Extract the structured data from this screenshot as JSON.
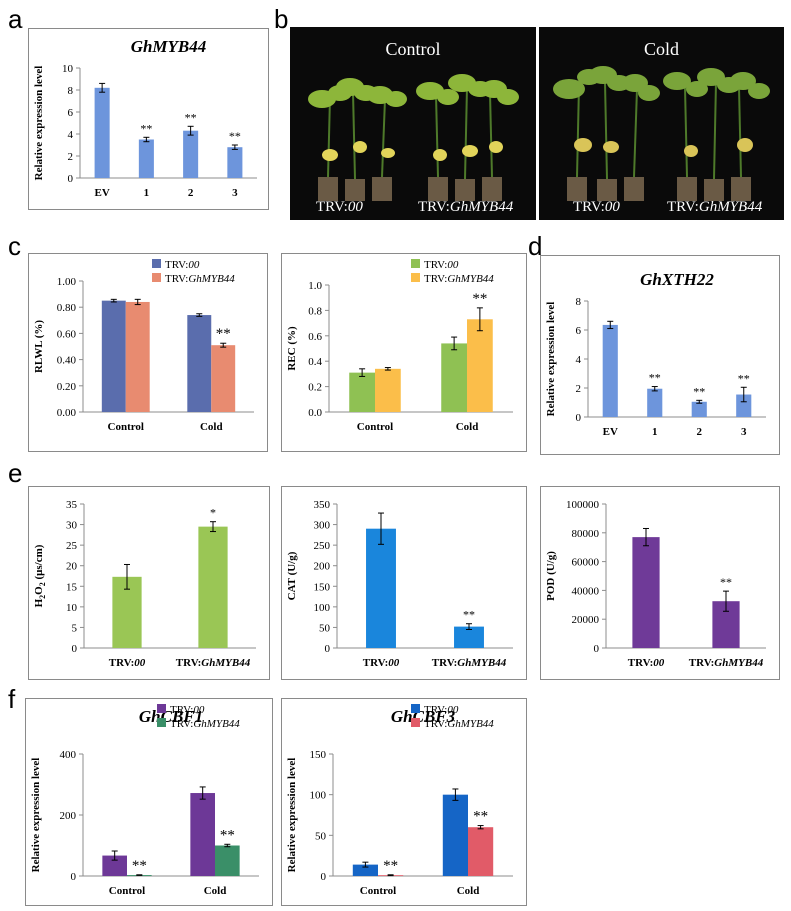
{
  "labels": {
    "a": "a",
    "b": "b",
    "c": "c",
    "d": "d",
    "e": "e",
    "f": "f"
  },
  "photos": [
    {
      "title": "Control",
      "left_caption": "TRV:",
      "left_caption_italic": "00",
      "right_caption": "TRV:",
      "right_caption_italic": "GhMYB44"
    },
    {
      "title": "Cold",
      "left_caption": "TRV:",
      "left_caption_italic": "00",
      "right_caption": "TRV:",
      "right_caption_italic": "GhMYB44"
    }
  ],
  "chart_data": [
    {
      "id": "a",
      "type": "bar",
      "title": "GhMYB44",
      "ylabel": "Relative expression level",
      "xlabel": "",
      "categories": [
        "EV",
        "1",
        "2",
        "3"
      ],
      "series": [
        {
          "values": [
            8.2,
            3.5,
            4.3,
            2.8
          ],
          "errors": [
            0.4,
            0.2,
            0.4,
            0.2
          ],
          "color": "#6d95dc"
        }
      ],
      "annotations": [
        "",
        "**",
        "**",
        "**"
      ],
      "ylim": [
        0,
        10
      ],
      "yticks": [
        0,
        2,
        4,
        6,
        8,
        10
      ],
      "tick_decimals": 0,
      "grid": false
    },
    {
      "id": "c1",
      "type": "bar",
      "title": "",
      "ylabel": "RLWL (%)",
      "xlabel": "",
      "categories": [
        "Control",
        "Cold"
      ],
      "series": [
        {
          "name": "TRV:",
          "name_italic": "00",
          "values": [
            0.85,
            0.74
          ],
          "errors": [
            0.01,
            0.01
          ],
          "color": "#5a6dad"
        },
        {
          "name": "TRV:",
          "name_italic": "GhMYB44",
          "values": [
            0.84,
            0.51
          ],
          "errors": [
            0.02,
            0.015
          ],
          "color": "#e88b70"
        }
      ],
      "annotations": [
        [
          "",
          ""
        ],
        [
          "",
          "**"
        ]
      ],
      "ylim": [
        0,
        1
      ],
      "yticks": [
        0,
        0.2,
        0.4,
        0.6,
        0.8,
        1.0
      ],
      "tick_decimals": 2,
      "grid": false,
      "legend": "top-right"
    },
    {
      "id": "c2",
      "type": "bar",
      "title": "",
      "ylabel": "REC (%)",
      "xlabel": "",
      "categories": [
        "Control",
        "Cold"
      ],
      "series": [
        {
          "name": "TRV:",
          "name_italic": "00",
          "values": [
            0.31,
            0.54
          ],
          "errors": [
            0.03,
            0.05
          ],
          "color": "#8fc153"
        },
        {
          "name": "TRV:",
          "name_italic": "GhMYB44",
          "values": [
            0.34,
            0.73
          ],
          "errors": [
            0.01,
            0.09
          ],
          "color": "#fbbe4a"
        }
      ],
      "annotations": [
        [
          "",
          ""
        ],
        [
          "",
          "**"
        ]
      ],
      "ylim": [
        0,
        1
      ],
      "yticks": [
        0,
        0.2,
        0.4,
        0.6,
        0.8,
        1.0
      ],
      "tick_decimals": 1,
      "grid": false,
      "legend": "top-right"
    },
    {
      "id": "d",
      "type": "bar",
      "title": "GhXTH22",
      "ylabel": "Relative expression level",
      "xlabel": "",
      "categories": [
        "EV",
        "1",
        "2",
        "3"
      ],
      "series": [
        {
          "values": [
            6.35,
            1.95,
            1.05,
            1.55
          ],
          "errors": [
            0.25,
            0.15,
            0.1,
            0.5
          ],
          "color": "#6d95dc"
        }
      ],
      "annotations": [
        "",
        "**",
        "**",
        "**"
      ],
      "ylim": [
        0,
        8
      ],
      "yticks": [
        0,
        2,
        4,
        6,
        8
      ],
      "tick_decimals": 0,
      "grid": false
    },
    {
      "id": "e1",
      "type": "bar",
      "title": "",
      "ylabel": "H2O2 (μs/cm)",
      "xlabel": "",
      "categories": [
        "TRV:00",
        "TRV:GhMYB44"
      ],
      "series": [
        {
          "values": [
            17.3,
            29.5
          ],
          "errors": [
            3.0,
            1.2
          ],
          "color": "#9ac655"
        }
      ],
      "annotations": [
        "",
        "*"
      ],
      "ylim": [
        0,
        35
      ],
      "yticks": [
        0,
        5,
        10,
        15,
        20,
        25,
        30,
        35
      ],
      "tick_decimals": 0,
      "grid": false
    },
    {
      "id": "e2",
      "type": "bar",
      "title": "",
      "ylabel": "CAT (U/g)",
      "xlabel": "",
      "categories": [
        "TRV:00",
        "TRV:GhMYB44"
      ],
      "series": [
        {
          "values": [
            290,
            52
          ],
          "errors": [
            38,
            7
          ],
          "color": "#1a86dc"
        }
      ],
      "annotations": [
        "",
        "**"
      ],
      "ylim": [
        0,
        350
      ],
      "yticks": [
        0,
        50,
        100,
        150,
        200,
        250,
        300,
        350
      ],
      "tick_decimals": 0,
      "grid": false
    },
    {
      "id": "e3",
      "type": "bar",
      "title": "",
      "ylabel": "POD (U/g)",
      "xlabel": "",
      "categories": [
        "TRV:00",
        "TRV:GhMYB44"
      ],
      "series": [
        {
          "values": [
            77000,
            32500
          ],
          "errors": [
            6000,
            7000
          ],
          "color": "#6f3a98"
        }
      ],
      "annotations": [
        "",
        "**"
      ],
      "ylim": [
        0,
        100000
      ],
      "yticks": [
        0,
        20000,
        40000,
        60000,
        80000,
        100000
      ],
      "tick_decimals": 0,
      "grid": false
    },
    {
      "id": "f1",
      "type": "bar",
      "title": "GhCBF1",
      "ylabel": "Relative expression level",
      "xlabel": "",
      "categories": [
        "Control",
        "Cold"
      ],
      "series": [
        {
          "name": "TRV:",
          "name_italic": "00",
          "values": [
            67,
            272
          ],
          "errors": [
            15,
            20
          ],
          "color": "#6d3897"
        },
        {
          "name": "TRV:",
          "name_italic": "GhMYB44",
          "values": [
            3,
            100
          ],
          "errors": [
            1,
            4
          ],
          "color": "#3a8f68"
        }
      ],
      "annotations": [
        [
          "",
          "**"
        ],
        [
          "",
          "**"
        ]
      ],
      "ylim": [
        0,
        400
      ],
      "yticks": [
        0,
        200,
        400
      ],
      "tick_decimals": 0,
      "grid": false,
      "legend": "top-right"
    },
    {
      "id": "f2",
      "type": "bar",
      "title": "GhCBF3",
      "ylabel": "Relative expression level",
      "xlabel": "",
      "categories": [
        "Control",
        "Cold"
      ],
      "series": [
        {
          "name": "TRV:",
          "name_italic": "00",
          "values": [
            14,
            100
          ],
          "errors": [
            3,
            7
          ],
          "color": "#1565c6"
        },
        {
          "name": "TRV:",
          "name_italic": "GhMYB44",
          "values": [
            1,
            60
          ],
          "errors": [
            0.5,
            2
          ],
          "color": "#e15b68"
        }
      ],
      "annotations": [
        [
          "",
          "**"
        ],
        [
          "",
          "**"
        ]
      ],
      "ylim": [
        0,
        150
      ],
      "yticks": [
        0,
        50,
        100,
        150
      ],
      "tick_decimals": 0,
      "grid": false,
      "legend": "top-right"
    }
  ]
}
